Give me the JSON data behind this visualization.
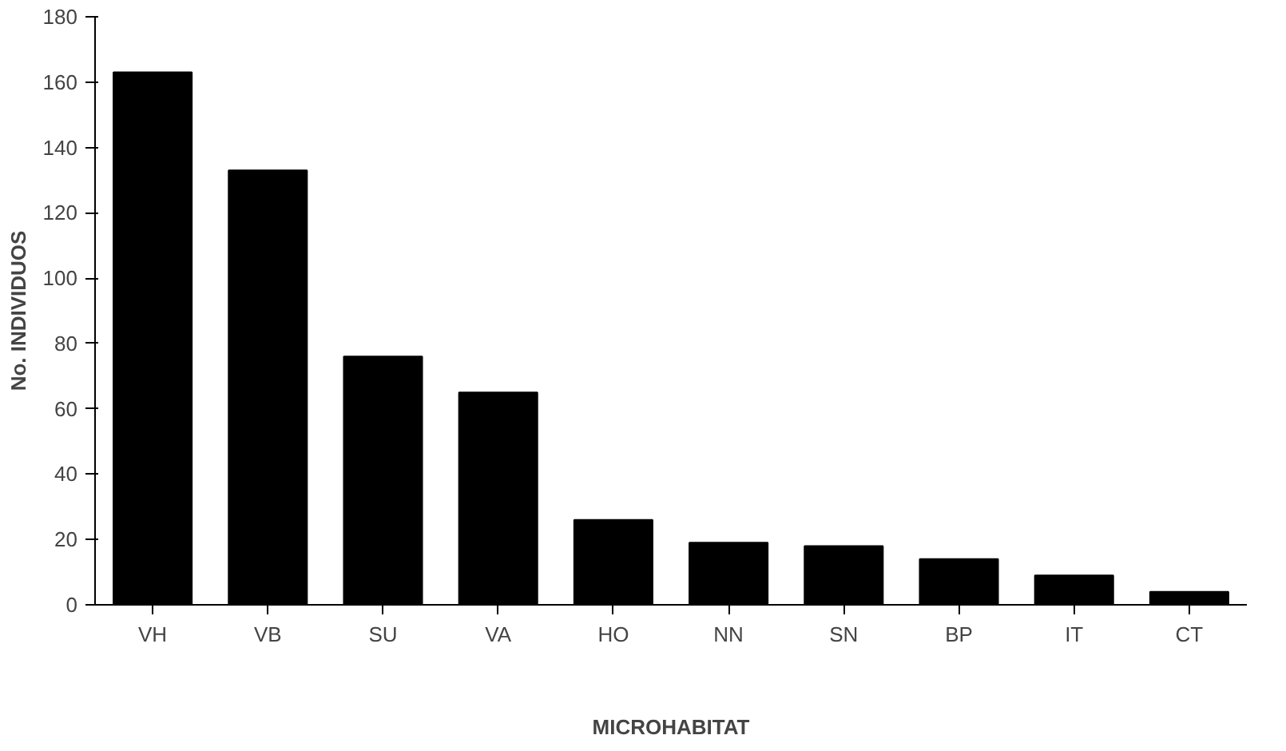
{
  "chart_data": {
    "type": "bar",
    "xlabel": "MICROHABITAT",
    "ylabel": "No. INDIVIDUOS",
    "categories": [
      "VH",
      "VB",
      "SU",
      "VA",
      "HO",
      "NN",
      "SN",
      "BP",
      "IT",
      "CT"
    ],
    "values": [
      163,
      133,
      76,
      65,
      26,
      19,
      18,
      14,
      9,
      4
    ],
    "color": "#000000",
    "ylim": [
      0,
      180
    ],
    "yticks": [
      0,
      20,
      40,
      60,
      80,
      100,
      120,
      140,
      160,
      180
    ],
    "grid": false
  }
}
